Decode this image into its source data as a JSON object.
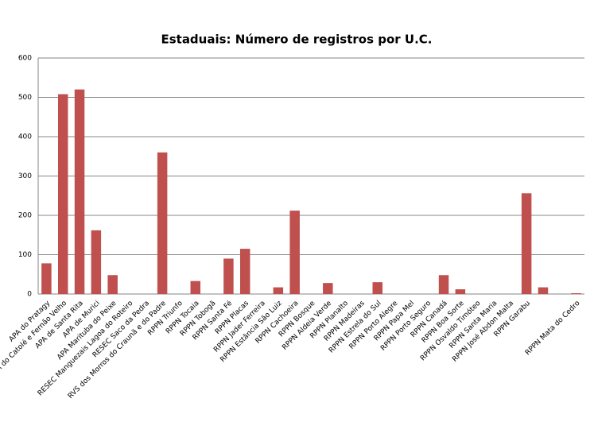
{
  "chart_data": {
    "type": "bar",
    "title": "Estaduais: Número de registros por U.C.",
    "categories": [
      "APA do Pratagy",
      "APA do Catolé e Fernão Velho",
      "APA de Santa Rita",
      "APA de Murici",
      "APA Marituba do Peixe",
      "RESEC Manguezais Lagoa do Roteiro",
      "RESEC Saco da Pedra",
      "RVS dos Morros do Craunã e do Padre",
      "RPPN Triunfo",
      "RPPN Tocaia",
      "RPPN Tobogã",
      "RPPN Santa Fé",
      "RPPN Placas",
      "RPPN Jader Ferreira",
      "RPPN Estância São Luiz",
      "RPPN Cachoeira",
      "RPPN Bosque",
      "RPPN Aldeia Verde",
      "RPPN Planalto",
      "RPPN Madeiras",
      "RPPN Estrela do Sul",
      "RPPN Porto Alegre",
      "RPPN Papa Mel",
      "RPPN Porto Seguro",
      "RPPN Canadá",
      "RPPN Boa Sorte",
      "RPPN Osvaldo Timóteo",
      "RPPN Santa Maria",
      "RPPN José Abdon Malta",
      "RPPN Garabu",
      null,
      null,
      "RPPN Mata do Cedro"
    ],
    "values": [
      78,
      508,
      520,
      162,
      48,
      0,
      0,
      360,
      0,
      33,
      0,
      90,
      115,
      0,
      17,
      212,
      0,
      28,
      0,
      0,
      30,
      0,
      0,
      0,
      48,
      12,
      0,
      0,
      0,
      256,
      17,
      0,
      2
    ],
    "color": "#c0504d",
    "ylim": [
      0,
      600
    ],
    "yticks": [
      0,
      100,
      200,
      300,
      400,
      500,
      600
    ],
    "grid": true
  }
}
